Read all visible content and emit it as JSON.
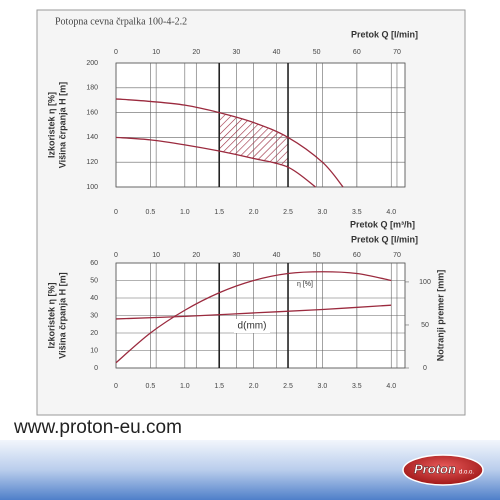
{
  "website": "www.proton-eu.com",
  "logo": {
    "name": "Proton",
    "suffix": "d.o.o."
  },
  "chart_data": [
    {
      "type": "line",
      "title": "Potopna cevna črpalka 100-4-2.2",
      "ylabel": [
        "Izkoristek η [%]",
        "Višina črpanja H [m]"
      ],
      "xlabel": "Pretok Q [m³/h]",
      "x2label": "Pretok Q [l/min]",
      "xlim": [
        0,
        4.2
      ],
      "xticks": [
        0,
        0.5,
        {
          "value": 1,
          "label": "1.0"
        },
        1.5,
        {
          "value": 2,
          "label": "2.0"
        },
        2.5,
        {
          "value": 3,
          "label": "3.0"
        },
        3.5,
        {
          "value": 4,
          "label": "4.0"
        }
      ],
      "x2lim": [
        0,
        72
      ],
      "x2ticks": [
        0,
        10,
        20,
        30,
        40,
        50,
        60,
        70
      ],
      "ylim": [
        100,
        200
      ],
      "yticks": [
        100,
        120,
        140,
        160,
        180,
        200
      ],
      "grid": true,
      "band": [
        1.5,
        2.5
      ],
      "series": [
        {
          "color": "#9b2a3e",
          "x": [
            0,
            0.5,
            1,
            1.5,
            2,
            2.5,
            3,
            3.3
          ],
          "values": [
            171,
            169,
            166,
            160,
            152,
            140,
            120,
            100
          ]
        },
        {
          "color": "#9b2a3e",
          "x": [
            0,
            0.5,
            1,
            1.5,
            2,
            2.5,
            2.9
          ],
          "values": [
            140,
            138,
            134,
            129,
            123,
            116,
            100
          ]
        }
      ]
    },
    {
      "type": "line",
      "ylabel": [
        "Izkoristek η [%]",
        "Višina črpanja H [m]"
      ],
      "y2label": "Notranji premer [mm]",
      "x2label": "Pretok Q [l/min]",
      "xlim": [
        0,
        4.2
      ],
      "xticks": [
        0,
        0.5,
        {
          "value": 1,
          "label": "1.0"
        },
        1.5,
        {
          "value": 2,
          "label": "2.0"
        },
        2.5,
        {
          "value": 3,
          "label": "3.0"
        },
        3.5,
        {
          "value": 4,
          "label": "4.0"
        }
      ],
      "x2lim": [
        0,
        72
      ],
      "x2ticks": [
        0,
        10,
        20,
        30,
        40,
        50,
        60,
        70
      ],
      "ylim": [
        0,
        60
      ],
      "yticks": [
        0,
        10,
        20,
        30,
        40,
        50,
        60
      ],
      "y2lim": [
        0,
        122
      ],
      "y2ticks": [
        0,
        50,
        100
      ],
      "grid": true,
      "band": [
        1.5,
        2.5
      ],
      "series": [
        {
          "name": "η [%]",
          "color": "#9b2a3e",
          "x": [
            0,
            0.5,
            1,
            1.5,
            2,
            2.5,
            3,
            3.5,
            4
          ],
          "values": [
            3,
            20,
            33,
            43,
            50,
            54,
            55,
            54,
            50
          ]
        },
        {
          "name": "d(mm)",
          "color": "#9b2a3e",
          "axis": "y2",
          "x": [
            0,
            1,
            2,
            3,
            4
          ],
          "values": [
            57,
            60,
            64,
            68,
            73
          ]
        }
      ]
    }
  ]
}
